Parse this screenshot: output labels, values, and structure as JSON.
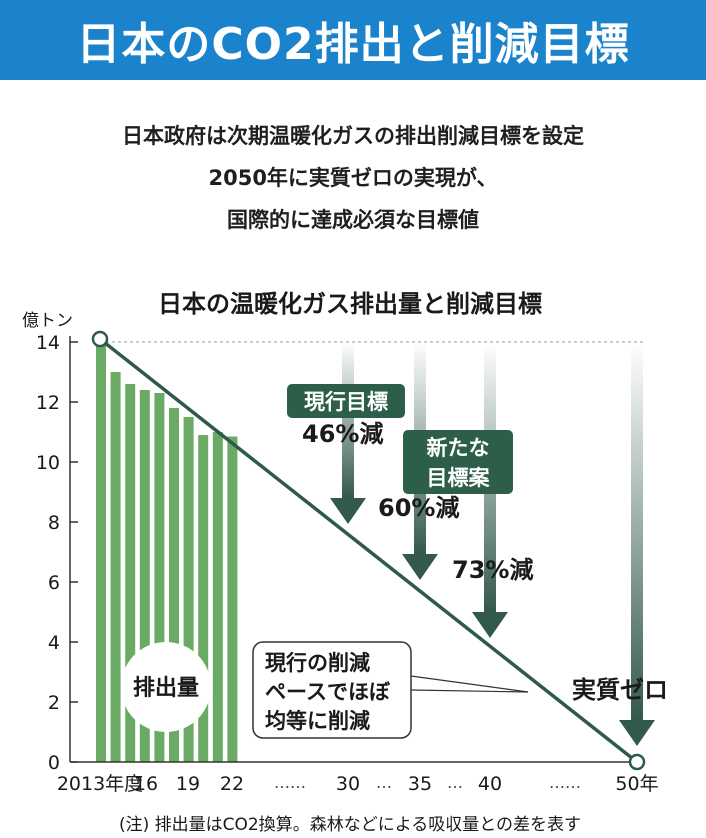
{
  "headline": "日本のCO2排出と削減目標",
  "subtitle_lines": [
    "日本政府は次期温暖化ガスの排出削減目標を設定",
    "2050年に実質ゼロの実現が、",
    "国際的に達成必須な目標値"
  ],
  "chart_data": {
    "type": "bar",
    "title": "日本の温暖化ガス排出量と削減目標",
    "ylabel": "億トン",
    "ylim": [
      0,
      14
    ],
    "yticks": [
      0,
      2,
      4,
      6,
      8,
      10,
      12,
      14
    ],
    "x_tick_labels": [
      {
        "year": 2013,
        "label": "2013年度"
      },
      {
        "year": 2016,
        "label": "16"
      },
      {
        "year": 2019,
        "label": "19"
      },
      {
        "year": 2022,
        "label": "22"
      },
      {
        "year": 2030,
        "label": "30"
      },
      {
        "year": 2035,
        "label": "35"
      },
      {
        "year": 2040,
        "label": "40"
      },
      {
        "year": 2050,
        "label": "50年"
      }
    ],
    "x_gap_dots": [
      "……",
      "…",
      "…",
      "……"
    ],
    "series": [
      {
        "name": "排出量",
        "years": [
          2013,
          2014,
          2015,
          2016,
          2017,
          2018,
          2019,
          2020,
          2021,
          2022
        ],
        "values": [
          14.1,
          13.0,
          12.6,
          12.4,
          12.3,
          11.8,
          11.5,
          10.9,
          11.0,
          10.85
        ]
      }
    ],
    "trend_line": {
      "label_lines": [
        "現行の削減",
        "ペースでほぼ",
        "均等に削減"
      ],
      "from": {
        "year": 2013,
        "value": 14.1
      },
      "to": {
        "year": 2050,
        "value": 0
      }
    },
    "targets": [
      {
        "year": 2030,
        "label": "46%減",
        "value": 7.6
      },
      {
        "year": 2035,
        "label": "60%減",
        "value": 5.64
      },
      {
        "year": 2040,
        "label": "73%減",
        "value": 3.8
      },
      {
        "year": 2050,
        "label": "実質ゼロ",
        "value": 0
      }
    ],
    "badges": [
      {
        "lines": [
          "現行目標"
        ]
      },
      {
        "lines": [
          "新たな",
          "目標案"
        ]
      }
    ],
    "grid": false
  },
  "footnote": "(注) 排出量はCO2換算。森林などによる吸収量との差を表す",
  "colors": {
    "headline_bg": "#1b83cc",
    "bar": "#6aaa64",
    "line": "#2f5a4a",
    "badge": "#2d5e4a",
    "arrow": "#33594b"
  }
}
